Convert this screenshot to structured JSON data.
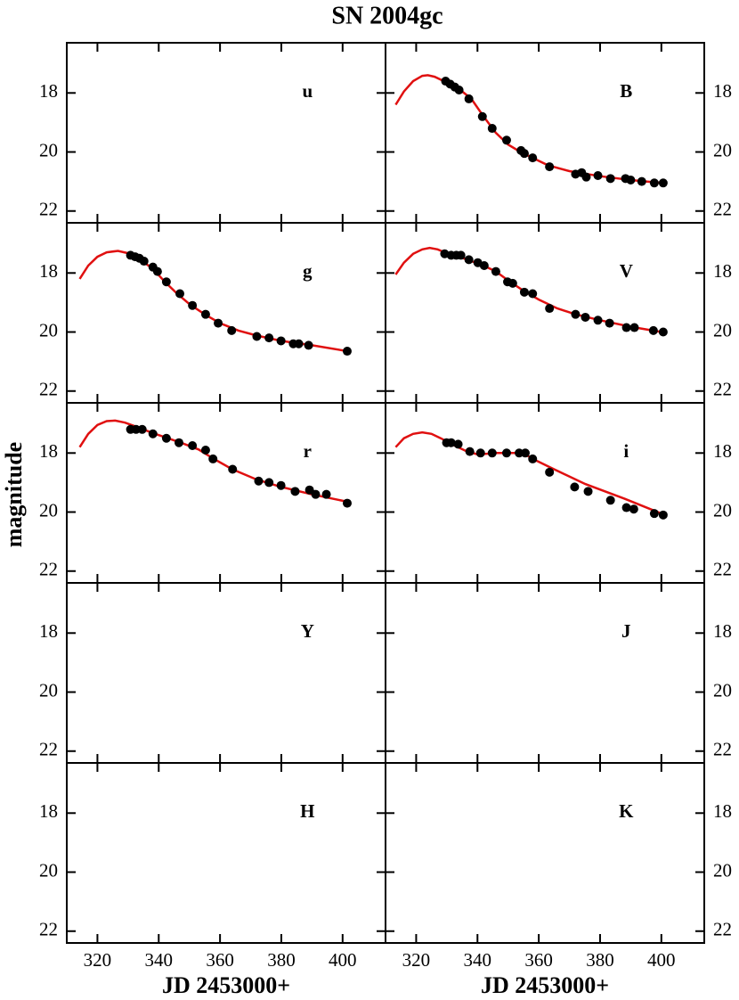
{
  "title": "SN 2004gc",
  "ylabel": "magnitude",
  "xlabel": "JD 2453000+",
  "chart_data": [
    {
      "type": "scatter",
      "label": "u",
      "xlim": [
        310,
        414
      ],
      "ylim": [
        16.3,
        22.4
      ],
      "xticks": [
        320,
        340,
        360,
        380,
        400
      ],
      "yticks": [
        18,
        20,
        22
      ]
    },
    {
      "type": "scatter",
      "label": "B",
      "xlim": [
        310,
        414
      ],
      "ylim": [
        16.3,
        22.4
      ],
      "xticks": [
        320,
        340,
        360,
        380,
        400
      ],
      "yticks": [
        18,
        20,
        22
      ],
      "points": {
        "color": "#000000",
        "x": [
          329.6,
          331.1,
          332.6,
          334,
          337.2,
          341.6,
          344.8,
          349.5,
          354.2,
          355.3,
          358,
          363.5,
          372,
          374,
          375.5,
          379.3,
          383.4,
          388.3,
          390,
          393.6,
          397.7,
          400.6
        ],
        "y": [
          17.6,
          17.7,
          17.8,
          17.9,
          18.2,
          18.8,
          19.2,
          19.6,
          19.95,
          20.05,
          20.2,
          20.5,
          20.75,
          20.7,
          20.85,
          20.8,
          20.9,
          20.9,
          20.95,
          21,
          21.05,
          21.05
        ]
      },
      "model": {
        "color": "#e01010",
        "x": [
          313.3,
          316,
          319,
          322,
          323.8,
          326,
          329,
          332,
          335,
          338,
          342,
          346,
          350,
          354,
          358,
          363,
          370,
          380,
          390,
          400
        ],
        "y": [
          18.4,
          17.95,
          17.6,
          17.42,
          17.4,
          17.45,
          17.6,
          17.8,
          17.95,
          18.2,
          18.8,
          19.35,
          19.75,
          20.0,
          20.2,
          20.45,
          20.65,
          20.82,
          20.95,
          21.05
        ]
      }
    },
    {
      "type": "scatter",
      "label": "g",
      "xlim": [
        310,
        414
      ],
      "ylim": [
        16.3,
        22.4
      ],
      "xticks": [
        320,
        340,
        360,
        380,
        400
      ],
      "yticks": [
        18,
        20,
        22
      ],
      "points": {
        "color": "#000000",
        "x": [
          330.8,
          332.3,
          333.7,
          335.2,
          338.1,
          339.6,
          342.5,
          346.9,
          351,
          355.3,
          359.4,
          363.8,
          372,
          376,
          379.9,
          383.9,
          385.7,
          388.9,
          401.5
        ],
        "y": [
          17.4,
          17.45,
          17.5,
          17.6,
          17.8,
          17.95,
          18.3,
          18.7,
          19.1,
          19.4,
          19.7,
          19.95,
          20.15,
          20.2,
          20.3,
          20.4,
          20.4,
          20.45,
          20.65
        ]
      },
      "model": {
        "color": "#e01010",
        "x": [
          314.2,
          317,
          320,
          323,
          326.7,
          330,
          334,
          338,
          342,
          346,
          350,
          355,
          360,
          366,
          372,
          380,
          390,
          401.5
        ],
        "y": [
          18.2,
          17.75,
          17.45,
          17.3,
          17.25,
          17.33,
          17.55,
          17.85,
          18.3,
          18.7,
          19.05,
          19.4,
          19.7,
          19.95,
          20.12,
          20.3,
          20.45,
          20.65
        ]
      }
    },
    {
      "type": "scatter",
      "label": "V",
      "xlim": [
        310,
        414
      ],
      "ylim": [
        16.3,
        22.4
      ],
      "xticks": [
        320,
        340,
        360,
        380,
        400
      ],
      "yticks": [
        18,
        20,
        22
      ],
      "points": {
        "color": "#000000",
        "x": [
          329.3,
          331.4,
          333.1,
          334.6,
          337.2,
          340.1,
          342.2,
          346,
          349.8,
          351.5,
          355.3,
          358,
          363.5,
          372,
          375.2,
          379.3,
          383.1,
          388.6,
          391.2,
          397.4,
          400.6
        ],
        "y": [
          17.35,
          17.4,
          17.4,
          17.4,
          17.55,
          17.65,
          17.75,
          17.95,
          18.3,
          18.35,
          18.65,
          18.7,
          19.2,
          19.4,
          19.5,
          19.6,
          19.7,
          19.85,
          19.85,
          19.95,
          20
        ]
      },
      "model": {
        "color": "#e01010",
        "x": [
          313.3,
          316,
          319,
          322,
          324.4,
          327,
          330,
          334,
          338,
          342,
          346,
          350,
          355,
          360,
          366,
          372,
          380,
          390,
          400
        ],
        "y": [
          18.05,
          17.65,
          17.35,
          17.2,
          17.15,
          17.2,
          17.33,
          17.45,
          17.6,
          17.75,
          17.95,
          18.25,
          18.6,
          18.9,
          19.2,
          19.4,
          19.6,
          19.82,
          20
        ]
      }
    },
    {
      "type": "scatter",
      "label": "r",
      "xlim": [
        310,
        414
      ],
      "ylim": [
        16.3,
        22.4
      ],
      "xticks": [
        320,
        340,
        360,
        380,
        400
      ],
      "yticks": [
        18,
        20,
        22
      ],
      "points": {
        "color": "#000000",
        "x": [
          330.8,
          332.6,
          334.6,
          338.1,
          342.5,
          346.6,
          351,
          355.3,
          357.7,
          364.1,
          372.6,
          376,
          379.9,
          384.5,
          389.2,
          391.2,
          394.7,
          401.5
        ],
        "y": [
          17.2,
          17.2,
          17.2,
          17.35,
          17.5,
          17.65,
          17.75,
          17.9,
          18.2,
          18.55,
          18.95,
          19,
          19.1,
          19.3,
          19.25,
          19.4,
          19.4,
          19.7
        ]
      },
      "model": {
        "color": "#e01010",
        "x": [
          314.2,
          317,
          320,
          323,
          325.8,
          329,
          333,
          338,
          343,
          348,
          353,
          358,
          364,
          372,
          380,
          390,
          401.5
        ],
        "y": [
          17.8,
          17.35,
          17.05,
          16.92,
          16.9,
          16.97,
          17.12,
          17.32,
          17.5,
          17.68,
          17.88,
          18.2,
          18.55,
          18.9,
          19.15,
          19.4,
          19.65
        ]
      }
    },
    {
      "type": "scatter",
      "label": "i",
      "xlim": [
        310,
        414
      ],
      "ylim": [
        16.3,
        22.4
      ],
      "xticks": [
        320,
        340,
        360,
        380,
        400
      ],
      "yticks": [
        18,
        20,
        22
      ],
      "points": {
        "color": "#000000",
        "x": [
          329.9,
          331.4,
          333.7,
          337.5,
          341,
          344.8,
          349.5,
          353.6,
          355.6,
          358,
          363.5,
          371.7,
          376.1,
          383.4,
          388.6,
          391,
          397.7,
          400.6
        ],
        "y": [
          17.65,
          17.65,
          17.7,
          17.95,
          18,
          18,
          18,
          18,
          18,
          18.2,
          18.65,
          19.15,
          19.3,
          19.6,
          19.85,
          19.9,
          20.05,
          20.1
        ]
      },
      "model": {
        "color": "#e01010",
        "x": [
          313.3,
          316,
          319,
          322,
          325,
          328,
          332.6,
          336,
          340.1,
          346,
          350,
          354.7,
          359.1,
          365,
          375.2,
          388,
          400
        ],
        "y": [
          17.8,
          17.5,
          17.35,
          17.3,
          17.35,
          17.5,
          17.75,
          17.92,
          18.05,
          18,
          18,
          18,
          18.25,
          18.55,
          19.05,
          19.55,
          20.05
        ]
      }
    },
    {
      "type": "scatter",
      "label": "Y",
      "xlim": [
        310,
        414
      ],
      "ylim": [
        16.3,
        22.4
      ],
      "xticks": [
        320,
        340,
        360,
        380,
        400
      ],
      "yticks": [
        18,
        20,
        22
      ]
    },
    {
      "type": "scatter",
      "label": "J",
      "xlim": [
        310,
        414
      ],
      "ylim": [
        16.3,
        22.4
      ],
      "xticks": [
        320,
        340,
        360,
        380,
        400
      ],
      "yticks": [
        18,
        20,
        22
      ]
    },
    {
      "type": "scatter",
      "label": "H",
      "xlim": [
        310,
        414
      ],
      "ylim": [
        16.3,
        22.4
      ],
      "xticks": [
        320,
        340,
        360,
        380,
        400
      ],
      "yticks": [
        18,
        20,
        22
      ]
    },
    {
      "type": "scatter",
      "label": "K",
      "xlim": [
        310,
        414
      ],
      "ylim": [
        16.3,
        22.4
      ],
      "xticks": [
        320,
        340,
        360,
        380,
        400
      ],
      "yticks": [
        18,
        20,
        22
      ]
    }
  ]
}
